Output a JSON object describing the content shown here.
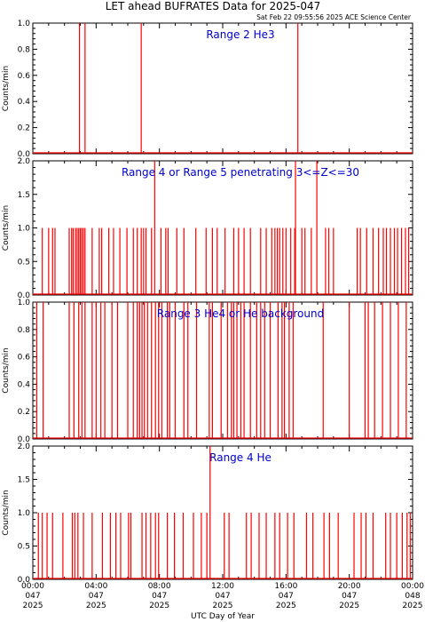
{
  "title": "LET ahead BUFRATES Data for 2025-047",
  "timestamp": "Sat Feb 22 09:55:56 2025 ACE Science Center",
  "xlabel": "UTC Day of Year",
  "colors": {
    "data": "#ff0000",
    "panel_label": "#0000cc",
    "axes": "#000000"
  },
  "x_ticks": [
    {
      "time": "00:00",
      "doy": "047",
      "year": "2025"
    },
    {
      "time": "04:00",
      "doy": "047",
      "year": "2025"
    },
    {
      "time": "08:00",
      "doy": "047",
      "year": "2025"
    },
    {
      "time": "12:00",
      "doy": "047",
      "year": "2025"
    },
    {
      "time": "16:00",
      "doy": "047",
      "year": "2025"
    },
    {
      "time": "20:00",
      "doy": "047",
      "year": "2025"
    },
    {
      "time": "00:00",
      "doy": "048",
      "year": "2025"
    }
  ],
  "chart_data": [
    {
      "type": "line",
      "panel_label": "Range 2 He3",
      "ylabel": "Counts/min",
      "ylim": [
        0,
        1.0
      ],
      "yticks": [
        "0.0",
        "0.2",
        "0.4",
        "0.6",
        "0.8",
        "1.0"
      ],
      "xlim_hours": [
        0,
        24
      ],
      "spikes": [
        {
          "x": 2.95,
          "y": 1.0
        },
        {
          "x": 3.3,
          "y": 1.0
        },
        {
          "x": 6.85,
          "y": 1.0
        },
        {
          "x": 16.75,
          "y": 1.0
        }
      ]
    },
    {
      "type": "line",
      "panel_label": "Range 4 or Range 5 penetrating 3<=Z<=30",
      "ylabel": "Counts/min",
      "ylim": [
        0,
        2.0
      ],
      "yticks": [
        "0.0",
        "0.5",
        "1.0",
        "1.5",
        "2.0"
      ],
      "xlim_hours": [
        0,
        24
      ],
      "spikes": [
        {
          "x": 0.6,
          "y": 1
        },
        {
          "x": 1.0,
          "y": 1
        },
        {
          "x": 1.25,
          "y": 1
        },
        {
          "x": 1.4,
          "y": 1
        },
        {
          "x": 2.3,
          "y": 1
        },
        {
          "x": 2.45,
          "y": 1
        },
        {
          "x": 2.55,
          "y": 1
        },
        {
          "x": 2.7,
          "y": 1
        },
        {
          "x": 2.8,
          "y": 1
        },
        {
          "x": 2.9,
          "y": 1
        },
        {
          "x": 3.0,
          "y": 1
        },
        {
          "x": 3.1,
          "y": 1
        },
        {
          "x": 3.2,
          "y": 1
        },
        {
          "x": 3.3,
          "y": 1
        },
        {
          "x": 3.75,
          "y": 1
        },
        {
          "x": 4.2,
          "y": 1
        },
        {
          "x": 4.35,
          "y": 1
        },
        {
          "x": 4.8,
          "y": 1
        },
        {
          "x": 5.1,
          "y": 1
        },
        {
          "x": 5.5,
          "y": 1
        },
        {
          "x": 5.95,
          "y": 1
        },
        {
          "x": 6.35,
          "y": 1
        },
        {
          "x": 6.6,
          "y": 1
        },
        {
          "x": 6.85,
          "y": 1
        },
        {
          "x": 7.0,
          "y": 1
        },
        {
          "x": 7.15,
          "y": 1
        },
        {
          "x": 7.5,
          "y": 1
        },
        {
          "x": 7.7,
          "y": 2
        },
        {
          "x": 8.1,
          "y": 1
        },
        {
          "x": 8.4,
          "y": 1
        },
        {
          "x": 8.55,
          "y": 1
        },
        {
          "x": 9.1,
          "y": 1
        },
        {
          "x": 9.55,
          "y": 1
        },
        {
          "x": 10.3,
          "y": 1
        },
        {
          "x": 10.95,
          "y": 1
        },
        {
          "x": 11.35,
          "y": 1
        },
        {
          "x": 11.65,
          "y": 1
        },
        {
          "x": 12.15,
          "y": 1
        },
        {
          "x": 12.7,
          "y": 1
        },
        {
          "x": 13.0,
          "y": 1
        },
        {
          "x": 13.35,
          "y": 1
        },
        {
          "x": 13.75,
          "y": 1
        },
        {
          "x": 14.4,
          "y": 1
        },
        {
          "x": 14.75,
          "y": 1
        },
        {
          "x": 15.1,
          "y": 1
        },
        {
          "x": 15.3,
          "y": 1
        },
        {
          "x": 15.45,
          "y": 1
        },
        {
          "x": 15.6,
          "y": 1
        },
        {
          "x": 15.8,
          "y": 1
        },
        {
          "x": 16.0,
          "y": 1
        },
        {
          "x": 16.3,
          "y": 1
        },
        {
          "x": 16.55,
          "y": 1
        },
        {
          "x": 16.6,
          "y": 2
        },
        {
          "x": 17.0,
          "y": 1
        },
        {
          "x": 17.2,
          "y": 1
        },
        {
          "x": 17.6,
          "y": 1
        },
        {
          "x": 17.95,
          "y": 2
        },
        {
          "x": 18.5,
          "y": 1
        },
        {
          "x": 18.7,
          "y": 1
        },
        {
          "x": 19.0,
          "y": 1
        },
        {
          "x": 20.5,
          "y": 1
        },
        {
          "x": 20.7,
          "y": 1
        },
        {
          "x": 21.1,
          "y": 1
        },
        {
          "x": 21.5,
          "y": 1
        },
        {
          "x": 21.85,
          "y": 1
        },
        {
          "x": 22.15,
          "y": 1
        },
        {
          "x": 22.35,
          "y": 1
        },
        {
          "x": 22.6,
          "y": 1
        },
        {
          "x": 22.85,
          "y": 1
        },
        {
          "x": 23.05,
          "y": 1
        },
        {
          "x": 23.3,
          "y": 1
        },
        {
          "x": 23.55,
          "y": 1
        },
        {
          "x": 23.75,
          "y": 1
        }
      ]
    },
    {
      "type": "line",
      "panel_label": "Range 3 He4 or He background",
      "ylabel": "Counts/min",
      "ylim": [
        0,
        1.0
      ],
      "yticks": [
        "0.0",
        "0.2",
        "0.4",
        "0.6",
        "0.8",
        "1.0"
      ],
      "xlim_hours": [
        0,
        24
      ],
      "spikes": [
        {
          "x": 0.25,
          "y": 1
        },
        {
          "x": 0.65,
          "y": 1
        },
        {
          "x": 2.3,
          "y": 1
        },
        {
          "x": 2.6,
          "y": 1
        },
        {
          "x": 2.9,
          "y": 1
        },
        {
          "x": 3.1,
          "y": 1
        },
        {
          "x": 3.3,
          "y": 1
        },
        {
          "x": 3.75,
          "y": 1
        },
        {
          "x": 4.0,
          "y": 1
        },
        {
          "x": 4.3,
          "y": 1
        },
        {
          "x": 4.55,
          "y": 1
        },
        {
          "x": 5.0,
          "y": 1
        },
        {
          "x": 5.35,
          "y": 1
        },
        {
          "x": 6.0,
          "y": 1
        },
        {
          "x": 6.35,
          "y": 1
        },
        {
          "x": 6.6,
          "y": 1
        },
        {
          "x": 6.75,
          "y": 1
        },
        {
          "x": 6.9,
          "y": 1
        },
        {
          "x": 7.05,
          "y": 1
        },
        {
          "x": 7.25,
          "y": 1
        },
        {
          "x": 7.5,
          "y": 1
        },
        {
          "x": 7.75,
          "y": 1
        },
        {
          "x": 7.95,
          "y": 1
        },
        {
          "x": 8.15,
          "y": 1
        },
        {
          "x": 8.5,
          "y": 1
        },
        {
          "x": 8.65,
          "y": 1
        },
        {
          "x": 9.0,
          "y": 1
        },
        {
          "x": 9.55,
          "y": 1
        },
        {
          "x": 9.8,
          "y": 1
        },
        {
          "x": 10.35,
          "y": 1
        },
        {
          "x": 11.15,
          "y": 1
        },
        {
          "x": 11.35,
          "y": 1
        },
        {
          "x": 11.9,
          "y": 1
        },
        {
          "x": 12.3,
          "y": 1
        },
        {
          "x": 12.55,
          "y": 1
        },
        {
          "x": 12.7,
          "y": 1
        },
        {
          "x": 12.9,
          "y": 1
        },
        {
          "x": 13.15,
          "y": 1
        },
        {
          "x": 13.35,
          "y": 1
        },
        {
          "x": 13.75,
          "y": 1
        },
        {
          "x": 14.15,
          "y": 1
        },
        {
          "x": 14.4,
          "y": 1
        },
        {
          "x": 14.65,
          "y": 1
        },
        {
          "x": 15.0,
          "y": 1
        },
        {
          "x": 15.5,
          "y": 1
        },
        {
          "x": 15.75,
          "y": 1
        },
        {
          "x": 15.9,
          "y": 1
        },
        {
          "x": 16.2,
          "y": 1
        },
        {
          "x": 16.45,
          "y": 1
        },
        {
          "x": 18.35,
          "y": 1
        },
        {
          "x": 20.0,
          "y": 1
        },
        {
          "x": 21.0,
          "y": 1
        },
        {
          "x": 21.2,
          "y": 1
        },
        {
          "x": 21.6,
          "y": 1
        },
        {
          "x": 22.1,
          "y": 1
        },
        {
          "x": 22.6,
          "y": 1
        },
        {
          "x": 23.1,
          "y": 1
        },
        {
          "x": 23.6,
          "y": 1
        }
      ]
    },
    {
      "type": "line",
      "panel_label": "Range 4 He",
      "ylabel": "Counts/min",
      "ylim": [
        0,
        2.0
      ],
      "yticks": [
        "0.0",
        "0.5",
        "1.0",
        "1.5",
        "2.0"
      ],
      "xlim_hours": [
        0,
        24
      ],
      "spikes": [
        {
          "x": 0.35,
          "y": 1
        },
        {
          "x": 0.6,
          "y": 1
        },
        {
          "x": 0.9,
          "y": 1
        },
        {
          "x": 1.25,
          "y": 1
        },
        {
          "x": 1.9,
          "y": 1
        },
        {
          "x": 2.5,
          "y": 1
        },
        {
          "x": 2.65,
          "y": 1
        },
        {
          "x": 2.85,
          "y": 1
        },
        {
          "x": 3.2,
          "y": 1
        },
        {
          "x": 3.75,
          "y": 1
        },
        {
          "x": 4.4,
          "y": 1
        },
        {
          "x": 4.9,
          "y": 1
        },
        {
          "x": 5.25,
          "y": 1
        },
        {
          "x": 5.55,
          "y": 1
        },
        {
          "x": 6.05,
          "y": 1
        },
        {
          "x": 6.2,
          "y": 1
        },
        {
          "x": 6.9,
          "y": 1
        },
        {
          "x": 7.15,
          "y": 1
        },
        {
          "x": 7.45,
          "y": 1
        },
        {
          "x": 7.75,
          "y": 1
        },
        {
          "x": 7.95,
          "y": 1
        },
        {
          "x": 8.5,
          "y": 1
        },
        {
          "x": 8.95,
          "y": 1
        },
        {
          "x": 9.5,
          "y": 1
        },
        {
          "x": 10.15,
          "y": 1
        },
        {
          "x": 10.65,
          "y": 1
        },
        {
          "x": 11.0,
          "y": 1
        },
        {
          "x": 11.2,
          "y": 2
        },
        {
          "x": 12.1,
          "y": 1
        },
        {
          "x": 12.4,
          "y": 1
        },
        {
          "x": 13.5,
          "y": 1
        },
        {
          "x": 13.8,
          "y": 1
        },
        {
          "x": 14.3,
          "y": 1
        },
        {
          "x": 14.75,
          "y": 1
        },
        {
          "x": 15.3,
          "y": 1
        },
        {
          "x": 15.6,
          "y": 1
        },
        {
          "x": 16.1,
          "y": 1
        },
        {
          "x": 16.5,
          "y": 1
        },
        {
          "x": 17.3,
          "y": 1
        },
        {
          "x": 17.7,
          "y": 1
        },
        {
          "x": 18.4,
          "y": 1
        },
        {
          "x": 18.75,
          "y": 1
        },
        {
          "x": 19.3,
          "y": 1
        },
        {
          "x": 20.3,
          "y": 1
        },
        {
          "x": 20.75,
          "y": 1
        },
        {
          "x": 21.05,
          "y": 1
        },
        {
          "x": 21.5,
          "y": 1
        },
        {
          "x": 22.3,
          "y": 1
        },
        {
          "x": 22.6,
          "y": 1
        },
        {
          "x": 23.0,
          "y": 1
        },
        {
          "x": 23.35,
          "y": 1
        },
        {
          "x": 23.65,
          "y": 1
        },
        {
          "x": 23.85,
          "y": 1
        }
      ]
    }
  ]
}
